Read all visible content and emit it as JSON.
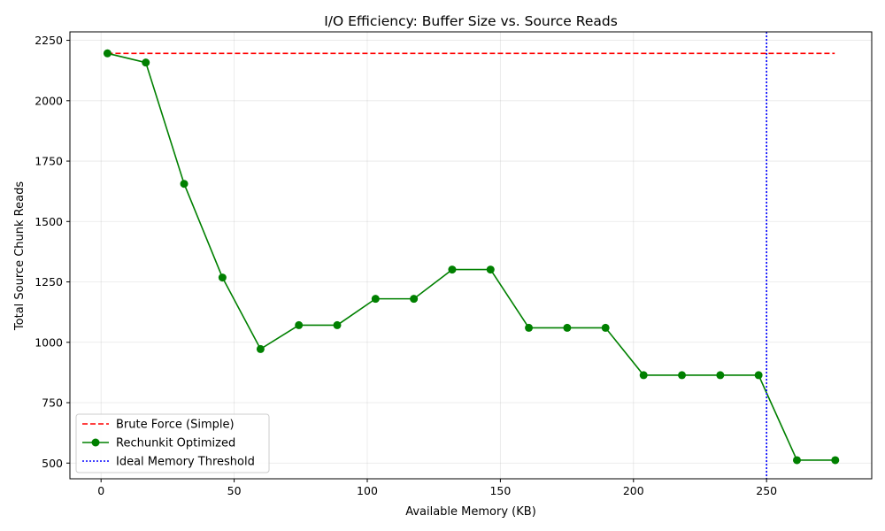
{
  "chart_data": {
    "type": "line",
    "title": "I/O Efficiency: Buffer Size vs. Source Reads",
    "xlabel": "Available Memory (KB)",
    "ylabel": "Total Source Chunk Reads",
    "xlim": [
      -11.7,
      289.5
    ],
    "ylim": [
      435,
      2285
    ],
    "xticks": [
      0,
      50,
      100,
      150,
      200,
      250
    ],
    "yticks": [
      500,
      750,
      1000,
      1250,
      1500,
      1750,
      2000,
      2250
    ],
    "grid": true,
    "legend_position": "lower-left",
    "series": [
      {
        "name": "Brute Force (Simple)",
        "style": "dashed",
        "color": "#ff0000",
        "x": [
          2.4,
          275.6
        ],
        "y": [
          2196,
          2196
        ]
      },
      {
        "name": "Rechunkit Optimized",
        "style": "solid-markers",
        "color": "#008000",
        "x": [
          2.4,
          16.8,
          31.2,
          45.6,
          59.9,
          74.3,
          88.7,
          103.1,
          117.5,
          131.9,
          146.3,
          160.7,
          175.1,
          189.5,
          203.8,
          218.2,
          232.6,
          247.0,
          261.4,
          275.8
        ],
        "y": [
          2196,
          2158,
          1656,
          1268,
          972,
          1071,
          1071,
          1180,
          1180,
          1301,
          1301,
          1060,
          1060,
          1060,
          864,
          864,
          864,
          864,
          512,
          512
        ]
      },
      {
        "name": "Ideal Memory Threshold",
        "style": "dotted-vertical",
        "color": "#0000ff",
        "x": [
          250,
          250
        ]
      }
    ]
  }
}
